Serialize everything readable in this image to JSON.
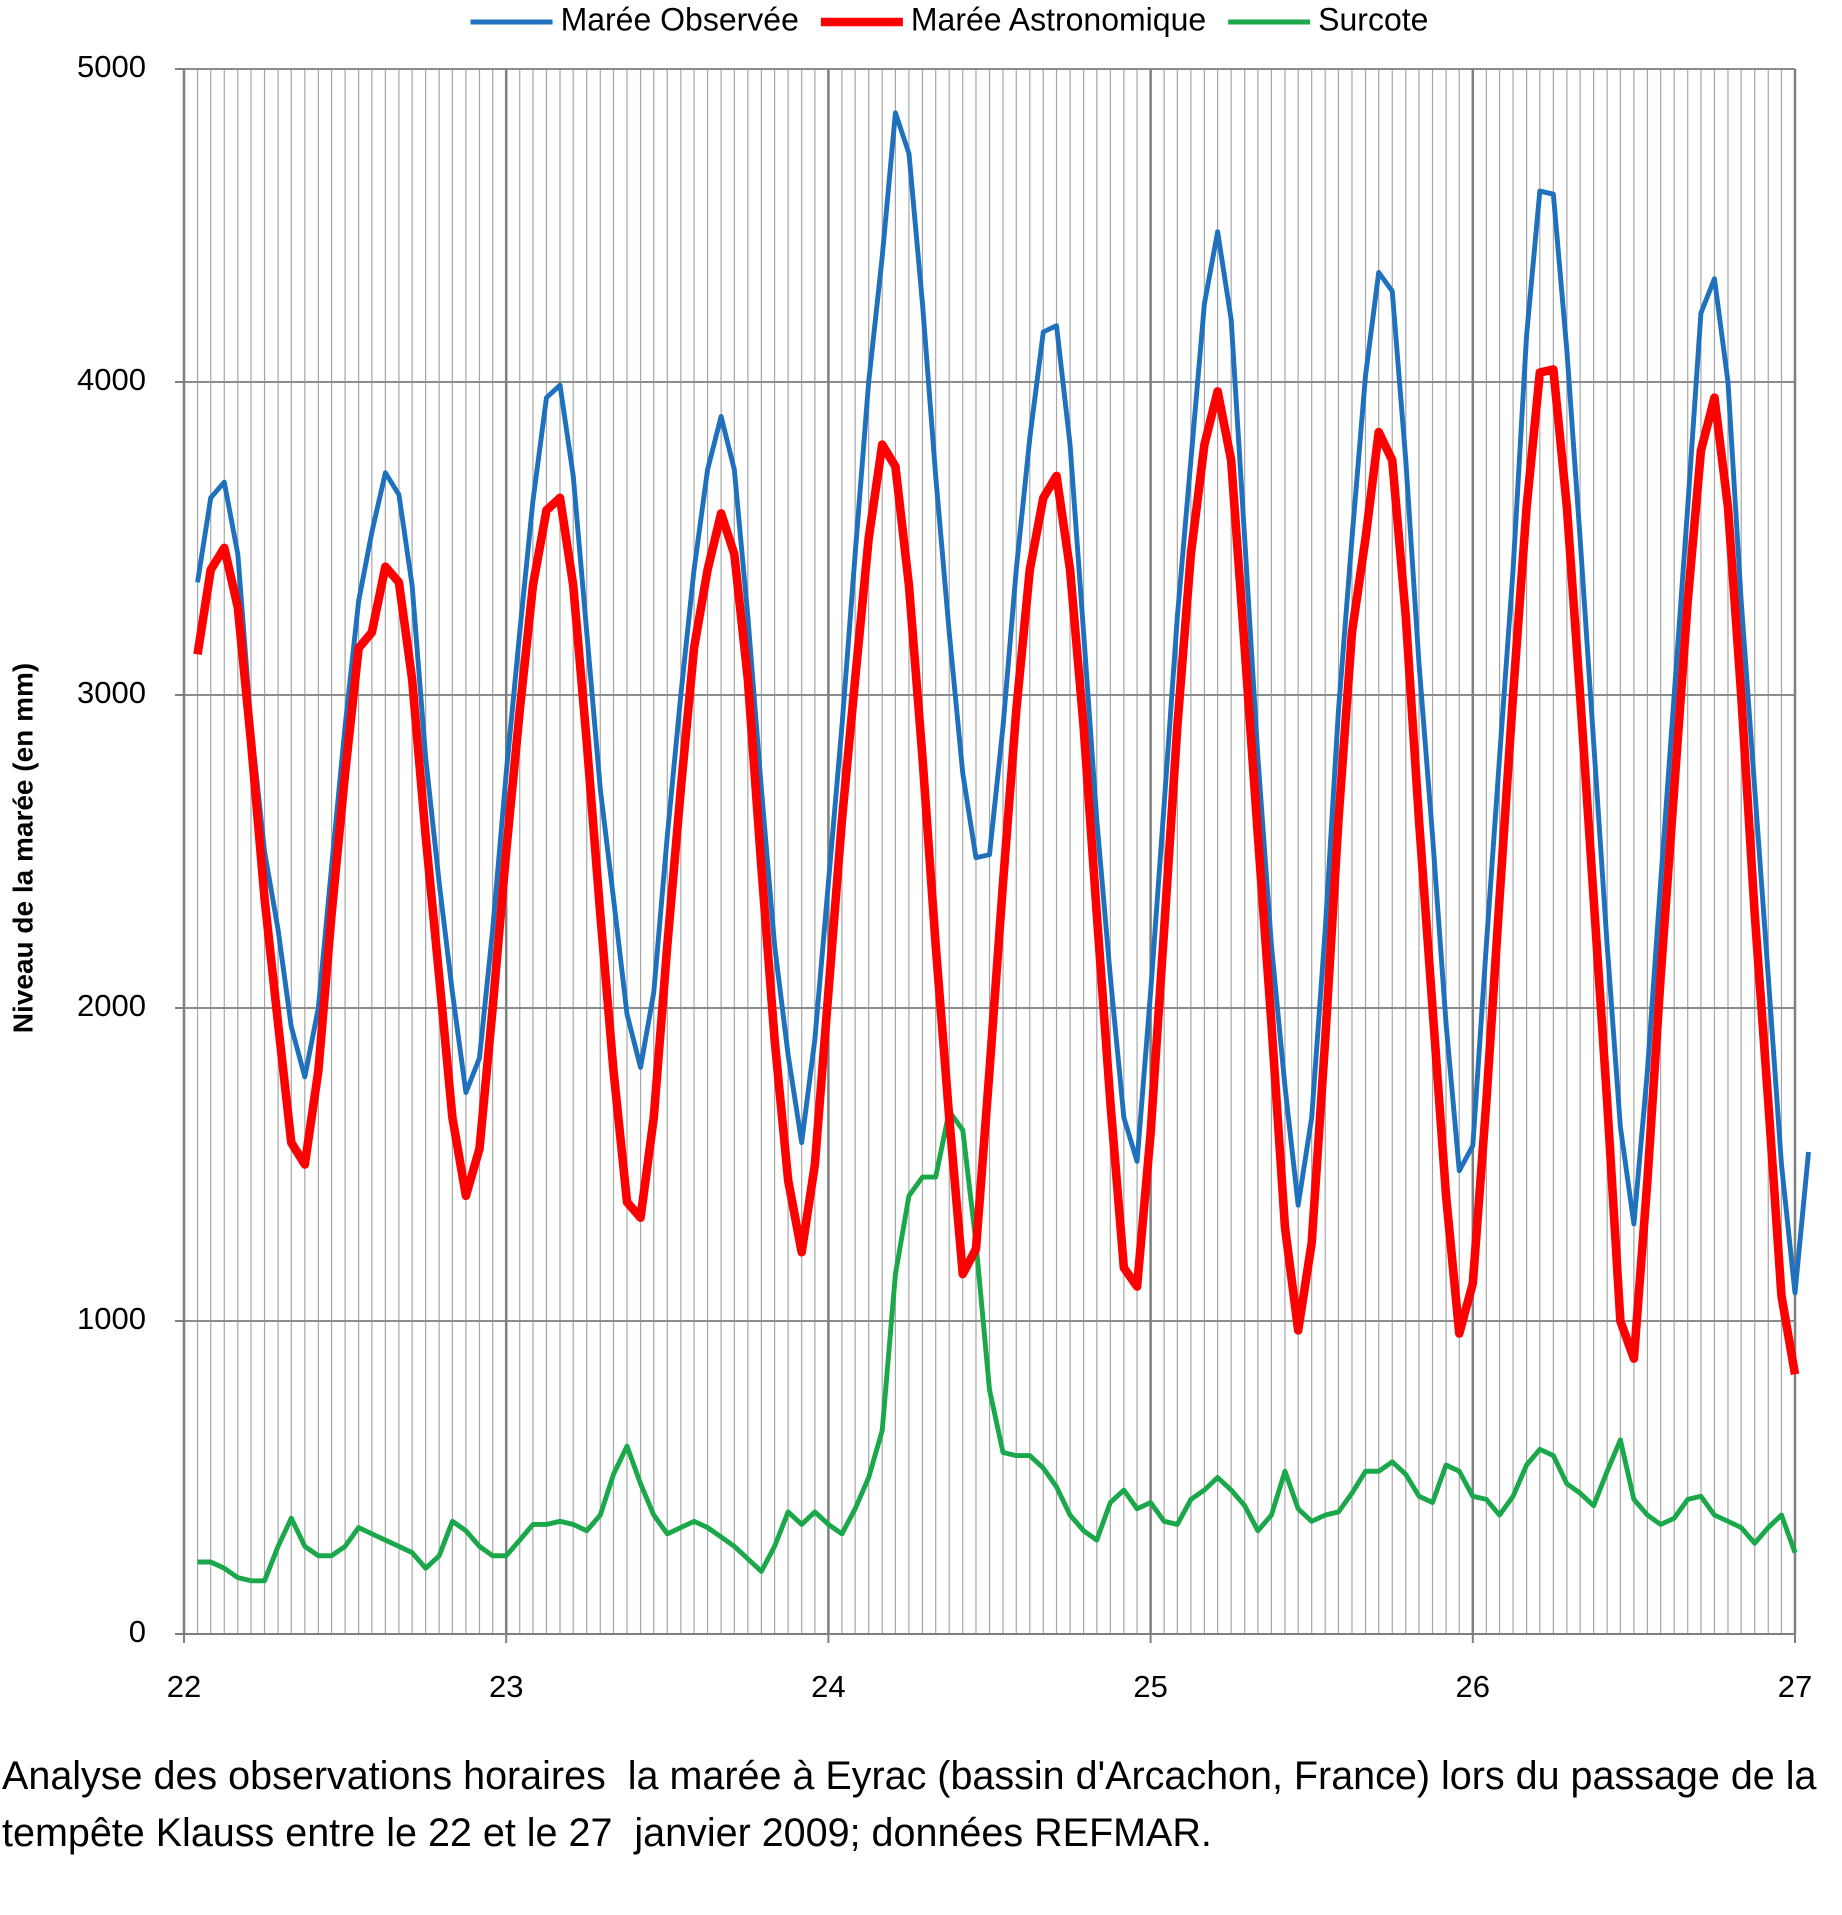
{
  "chart_data": {
    "type": "line",
    "y_label": "Niveau de la marée (en mm)",
    "caption": "Analyse des observations horaires  la marée à Eyrac (bassin d'Arcachon, France) lors du passage de la tempête Klauss entre le 22 et le 27  janvier 2009; données REFMAR.",
    "legend": "top",
    "grid": true,
    "xlim": [
      22,
      27
    ],
    "xticks": [
      22,
      23,
      24,
      25,
      26,
      27
    ],
    "ylim": [
      0,
      5000
    ],
    "yticks": [
      0,
      1000,
      2000,
      3000,
      4000,
      5000
    ],
    "x": [
      22.042,
      22.083,
      22.125,
      22.167,
      22.208,
      22.25,
      22.292,
      22.333,
      22.375,
      22.417,
      22.458,
      22.5,
      22.542,
      22.583,
      22.625,
      22.667,
      22.708,
      22.75,
      22.792,
      22.833,
      22.875,
      22.917,
      22.958,
      23,
      23.042,
      23.083,
      23.125,
      23.167,
      23.208,
      23.25,
      23.292,
      23.333,
      23.375,
      23.417,
      23.458,
      23.5,
      23.542,
      23.583,
      23.625,
      23.667,
      23.708,
      23.75,
      23.792,
      23.833,
      23.875,
      23.917,
      23.958,
      24,
      24.042,
      24.083,
      24.125,
      24.167,
      24.208,
      24.25,
      24.292,
      24.333,
      24.375,
      24.417,
      24.458,
      24.5,
      24.542,
      24.583,
      24.625,
      24.667,
      24.708,
      24.75,
      24.792,
      24.833,
      24.875,
      24.917,
      24.958,
      25,
      25.042,
      25.083,
      25.125,
      25.167,
      25.208,
      25.25,
      25.292,
      25.333,
      25.375,
      25.417,
      25.458,
      25.5,
      25.542,
      25.583,
      25.625,
      25.667,
      25.708,
      25.75,
      25.792,
      25.833,
      25.875,
      25.917,
      25.958,
      26,
      26.042,
      26.083,
      26.125,
      26.167,
      26.208,
      26.25,
      26.292,
      26.333,
      26.375,
      26.417,
      26.458,
      26.5,
      26.542,
      26.583,
      26.625,
      26.667,
      26.708,
      26.75,
      26.792,
      26.833,
      26.875,
      26.917,
      26.958,
      27,
      27.042
    ],
    "series": [
      {
        "name": "Marée Observée",
        "color": "#1f70bd",
        "width": 4,
        "values": [
          3360,
          3630,
          3680,
          3450,
          2900,
          2500,
          2250,
          1940,
          1780,
          2000,
          2450,
          2900,
          3300,
          3520,
          3710,
          3640,
          3350,
          2800,
          2400,
          2050,
          1730,
          1840,
          2250,
          2750,
          3200,
          3620,
          3950,
          3990,
          3700,
          3200,
          2700,
          2350,
          1980,
          1810,
          2050,
          2550,
          3000,
          3400,
          3720,
          3890,
          3720,
          3250,
          2700,
          2200,
          1850,
          1570,
          1900,
          2400,
          2900,
          3450,
          4000,
          4400,
          4860,
          4730,
          4250,
          3700,
          3200,
          2750,
          2480,
          2490,
          2900,
          3400,
          3820,
          4160,
          4180,
          3800,
          3200,
          2600,
          2100,
          1650,
          1510,
          2050,
          2650,
          3250,
          3750,
          4250,
          4480,
          4200,
          3500,
          2800,
          2200,
          1750,
          1370,
          1650,
          2250,
          2950,
          3500,
          4020,
          4350,
          4290,
          3750,
          3100,
          2550,
          1950,
          1480,
          1560,
          2200,
          2800,
          3400,
          4150,
          4610,
          4600,
          4100,
          3500,
          2850,
          2200,
          1620,
          1310,
          1800,
          2400,
          3000,
          3600,
          4220,
          4330,
          4000,
          3300,
          2700,
          2100,
          1500,
          1090,
          1540
        ]
      },
      {
        "name": "Marée Astronomique",
        "color": "#ff0000",
        "width": 7,
        "values": [
          3130,
          3400,
          3470,
          3280,
          2850,
          2350,
          1950,
          1570,
          1500,
          1800,
          2300,
          2750,
          3150,
          3200,
          3410,
          3360,
          3050,
          2550,
          2100,
          1650,
          1400,
          1550,
          2000,
          2500,
          2950,
          3350,
          3590,
          3630,
          3350,
          2850,
          2300,
          1800,
          1380,
          1330,
          1650,
          2200,
          2700,
          3150,
          3400,
          3580,
          3450,
          3050,
          2450,
          1900,
          1450,
          1220,
          1500,
          2050,
          2600,
          3050,
          3500,
          3800,
          3730,
          3350,
          2800,
          2200,
          1650,
          1150,
          1230,
          1800,
          2400,
          2950,
          3400,
          3630,
          3700,
          3400,
          2900,
          2300,
          1700,
          1170,
          1110,
          1600,
          2250,
          2900,
          3450,
          3800,
          3970,
          3750,
          3150,
          2550,
          1950,
          1300,
          970,
          1250,
          1900,
          2600,
          3200,
          3500,
          3840,
          3750,
          3250,
          2600,
          2000,
          1400,
          960,
          1120,
          1700,
          2350,
          3000,
          3600,
          4030,
          4040,
          3600,
          3000,
          2350,
          1700,
          1000,
          880,
          1450,
          2100,
          2700,
          3300,
          3780,
          3950,
          3600,
          3000,
          2300,
          1700,
          1080,
          830,
          null
        ]
      },
      {
        "name": "Surcote",
        "color": "#1aa84b",
        "width": 4,
        "values": [
          230,
          230,
          210,
          180,
          170,
          170,
          280,
          370,
          280,
          250,
          250,
          280,
          340,
          320,
          300,
          280,
          260,
          210,
          250,
          360,
          330,
          280,
          250,
          250,
          300,
          350,
          350,
          360,
          350,
          330,
          380,
          510,
          600,
          480,
          380,
          320,
          340,
          360,
          340,
          310,
          280,
          240,
          200,
          280,
          390,
          350,
          390,
          350,
          320,
          400,
          500,
          650,
          1150,
          1400,
          1460,
          1460,
          1670,
          1610,
          1250,
          780,
          580,
          570,
          570,
          530,
          470,
          380,
          330,
          300,
          420,
          460,
          400,
          420,
          360,
          350,
          430,
          460,
          500,
          460,
          410,
          330,
          380,
          520,
          400,
          360,
          380,
          390,
          450,
          520,
          520,
          550,
          510,
          440,
          420,
          540,
          520,
          440,
          430,
          380,
          440,
          540,
          590,
          570,
          480,
          450,
          410,
          520,
          620,
          430,
          380,
          350,
          370,
          430,
          440,
          380,
          360,
          340,
          290,
          340,
          380,
          260,
          null
        ]
      }
    ]
  }
}
